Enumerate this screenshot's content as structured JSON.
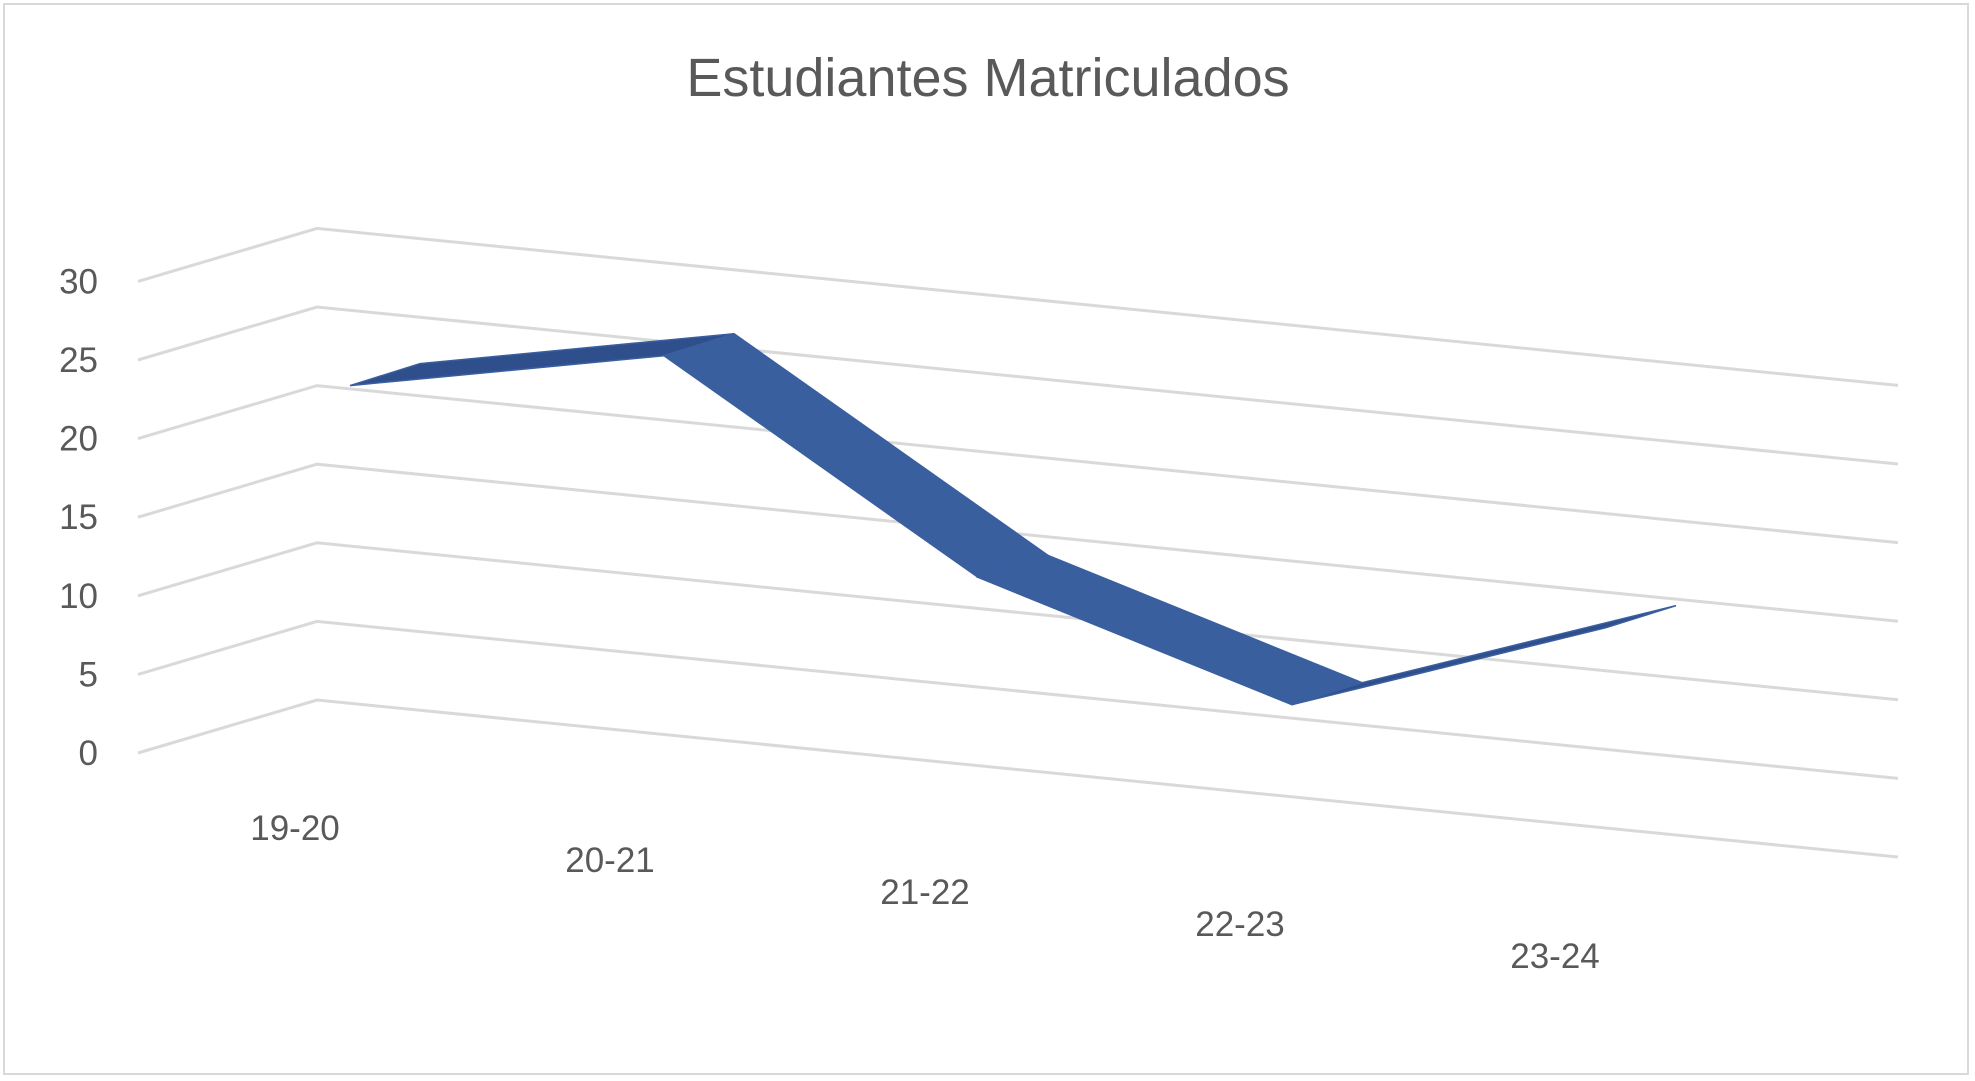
{
  "chart_data": {
    "type": "line",
    "title": "Estudiantes Matriculados",
    "categories": [
      "19-20",
      "20-21",
      "21-22",
      "22-23",
      "23-24"
    ],
    "series": [
      {
        "values": [
          20,
          24,
          12,
          6,
          13
        ]
      }
    ],
    "ylim": [
      0,
      30
    ],
    "yticks": [
      0,
      5,
      10,
      15,
      20,
      25,
      30
    ],
    "grid": true,
    "legend": "none",
    "style": "3d",
    "colors": {
      "line_face": "#3a5f9f",
      "line_top": "#2e4f8c",
      "grid": "#d9d9d9",
      "text": "#595959",
      "border": "#d9d9d9"
    }
  }
}
